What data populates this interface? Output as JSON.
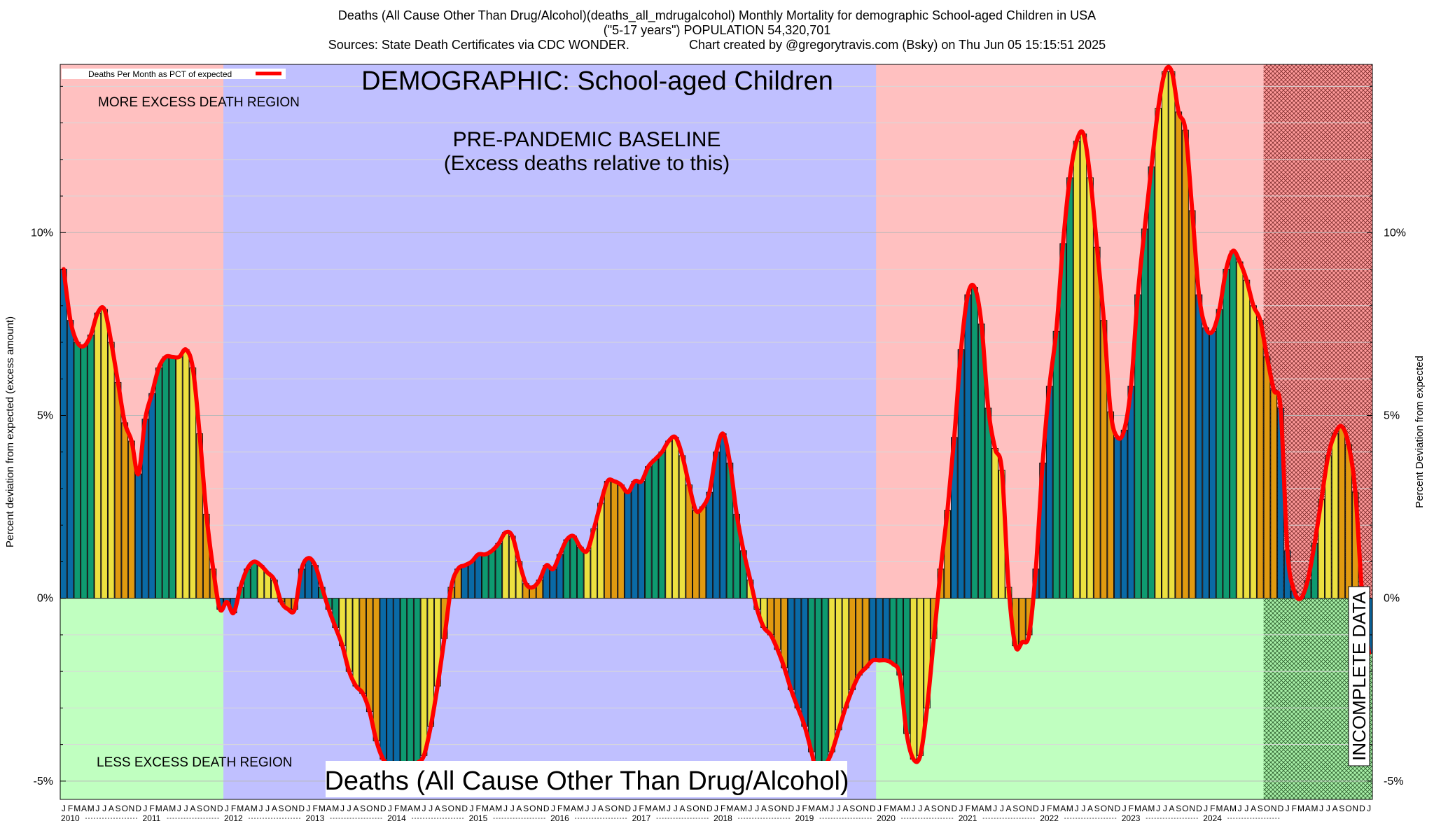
{
  "header": {
    "line1": "Deaths (All Cause Other Than Drug/Alcohol)(deaths_all_mdrugalcohol) Monthly Mortality for demographic School-aged Children in USA",
    "line2": "(\"5-17 years\") POPULATION 54,320,701",
    "line3": "Sources: State Death Certificates via CDC WONDER.                 Chart created by @gregorytravis.com (Bsky) on Thu Jun 05 15:15:51 2025"
  },
  "colors": {
    "excess_region": "#ffc0c0",
    "less_region": "#c0ffc0",
    "baseline_region": "#c0c0ff",
    "incomplete_region": "#ff9a9a",
    "line": "#ff0000",
    "season_winter": "#0a6aa6",
    "season_spring": "#0e9a70",
    "season_summer": "#ece040",
    "season_fall": "#e09a10"
  },
  "chart_data": {
    "type": "bar",
    "title": "DEMOGRAPHIC: School-aged Children",
    "subtitle": "Deaths (All Cause Other Than Drug/Alcohol)",
    "ylabel_left": "Percent deviation from expected (excess amount)",
    "ylabel_right": "Percent Deviation from expected",
    "ylim": [
      -5.5,
      14.6
    ],
    "y_ticks": [
      -5,
      0,
      5,
      10
    ],
    "y_tick_labels": [
      "-5%",
      "0%",
      "5%",
      "10%"
    ],
    "start": "2010-01",
    "month_letters": [
      "J",
      "F",
      "M",
      "A",
      "M",
      "J",
      "J",
      "A",
      "S",
      "O",
      "N",
      "D"
    ],
    "years": [
      "2010",
      "2011",
      "2012",
      "2013",
      "2014",
      "2015",
      "2016",
      "2017",
      "2018",
      "2019",
      "2020",
      "2021",
      "2022",
      "2023",
      "2024"
    ],
    "legend": "Deaths Per Month as PCT of expected",
    "regions": {
      "more_excess": "MORE EXCESS DEATH REGION",
      "less_excess": "LESS EXCESS DEATH REGION",
      "baseline_title": "PRE-PANDEMIC BASELINE",
      "baseline_subtitle": "(Excess deaths relative to this)",
      "incomplete": "INCOMPLETE DATA"
    },
    "baseline_period": [
      "2012-01",
      "2019-12"
    ],
    "incomplete_from": "2024-10",
    "values": [
      9.0,
      7.6,
      7.0,
      6.9,
      7.2,
      7.8,
      7.9,
      7.0,
      5.9,
      4.8,
      4.3,
      3.4,
      4.9,
      5.6,
      6.3,
      6.6,
      6.6,
      6.6,
      6.8,
      6.3,
      4.5,
      2.3,
      0.8,
      -0.3,
      -0.1,
      -0.4,
      0.3,
      0.8,
      1.0,
      0.9,
      0.7,
      0.5,
      -0.1,
      -0.3,
      -0.3,
      0.8,
      1.1,
      0.9,
      0.3,
      -0.3,
      -0.8,
      -1.3,
      -2.0,
      -2.4,
      -2.6,
      -3.1,
      -3.9,
      -4.4,
      -4.6,
      -4.6,
      -4.7,
      -4.6,
      -4.5,
      -4.3,
      -3.5,
      -2.4,
      -1.1,
      0.3,
      0.8,
      0.9,
      1.0,
      1.2,
      1.2,
      1.3,
      1.5,
      1.8,
      1.7,
      1.0,
      0.4,
      0.3,
      0.5,
      0.9,
      0.8,
      1.2,
      1.6,
      1.7,
      1.4,
      1.3,
      1.9,
      2.6,
      3.2,
      3.2,
      3.1,
      2.9,
      3.2,
      3.2,
      3.6,
      3.8,
      4.0,
      4.3,
      4.4,
      3.9,
      3.1,
      2.4,
      2.5,
      2.9,
      4.0,
      4.5,
      3.7,
      2.3,
      1.3,
      0.5,
      -0.3,
      -0.8,
      -1.0,
      -1.4,
      -1.9,
      -2.5,
      -3.0,
      -3.5,
      -4.2,
      -4.9,
      -4.6,
      -4.2,
      -3.6,
      -3.0,
      -2.5,
      -2.1,
      -1.9,
      -1.7,
      -1.7,
      -1.7,
      -1.8,
      -2.1,
      -3.7,
      -4.4,
      -4.3,
      -3.0,
      -1.1,
      0.8,
      2.4,
      4.4,
      6.8,
      8.3,
      8.5,
      7.5,
      5.2,
      4.1,
      3.5,
      0.3,
      -1.3,
      -1.2,
      -1.0,
      0.8,
      3.7,
      5.8,
      7.3,
      9.7,
      11.5,
      12.5,
      12.7,
      11.5,
      9.6,
      7.6,
      5.1,
      4.4,
      4.6,
      5.8,
      8.3,
      10.1,
      11.8,
      13.4,
      14.4,
      14.4,
      13.3,
      12.8,
      10.6,
      8.3,
      7.4,
      7.3,
      7.9,
      9.0,
      9.5,
      9.2,
      8.7,
      8.0,
      7.6,
      6.6,
      5.7,
      5.2,
      1.3,
      0.2,
      0.0,
      0.5,
      1.5,
      2.7,
      3.9,
      4.5,
      4.7,
      4.2,
      2.9,
      0.1,
      -1.5
    ]
  }
}
